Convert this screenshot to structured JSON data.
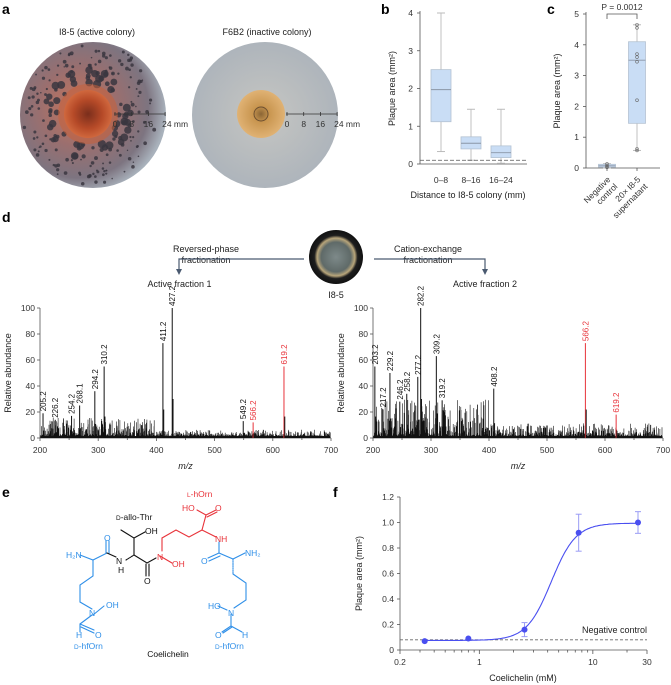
{
  "panel_letters": {
    "a": "a",
    "b": "b",
    "c": "c",
    "d": "d",
    "e": "e",
    "f": "f"
  },
  "panel_a": {
    "title_active": "I8-5 (active colony)",
    "title_inactive": "F6B2 (inactive colony)",
    "scale_labels": [
      "0",
      "8",
      "16",
      "24 mm"
    ],
    "colors": {
      "active_colony": "#c0502a",
      "inactive_colony": "#d9a45a",
      "plate": "#b9bec4"
    }
  },
  "panel_d_header": {
    "left_method_line1": "Reversed-phase",
    "left_method_line2": "fractionation",
    "right_method_line1": "Cation-exchange",
    "right_method_line2": "fractionation",
    "source_label": "I8-5"
  },
  "panel_e": {
    "compound_name": "Coelichelin",
    "thr": {
      "prefix": "D",
      "name": "-allo-Thr"
    },
    "horn": {
      "prefix": "L",
      "name": "-hOrn"
    },
    "hforn_left": {
      "prefix": "D",
      "name": "-hfOrn"
    },
    "hforn_right": {
      "prefix": "D",
      "name": "-hfOrn"
    },
    "atoms": {
      "h2n": "H₂N",
      "nh2": "NH₂",
      "o": "O",
      "oh": "OH",
      "ho": "HO",
      "nh": "NH",
      "n": "N",
      "h": "H"
    },
    "colors": {
      "hforn": "#2f8fe8",
      "horn": "#e8333a",
      "thr": "#111111"
    }
  },
  "chart_data": [
    {
      "id": "b",
      "type": "box",
      "categories": [
        "0–8",
        "8–16",
        "16–24"
      ],
      "boxes": [
        {
          "min": 0.33,
          "q1": 1.12,
          "median": 1.97,
          "q3": 2.5,
          "max": 4.0
        },
        {
          "min": 0.1,
          "q1": 0.4,
          "median": 0.55,
          "q3": 0.72,
          "max": 1.45
        },
        {
          "min": 0.02,
          "q1": 0.17,
          "median": 0.3,
          "q3": 0.48,
          "max": 1.45
        }
      ],
      "reference_line": 0.1,
      "xlabel": "Distance to I8-5 colony (mm)",
      "ylabel": "Plaque area (mm²)",
      "ylim": [
        0,
        4
      ],
      "yticks": [
        "0",
        "1",
        "2",
        "3",
        "4"
      ],
      "colors": {
        "box": "#c9ddf5",
        "edge": "#9aa9bb"
      }
    },
    {
      "id": "c",
      "type": "box",
      "categories": [
        [
          "Negative",
          "control"
        ],
        [
          "20× I8-5",
          "supernatant"
        ]
      ],
      "boxes": [
        {
          "min": 0.0,
          "q1": 0.03,
          "median": 0.07,
          "q3": 0.12,
          "max": 0.14,
          "points": [
            0.02,
            0.05,
            0.08,
            0.13
          ]
        },
        {
          "min": 0.57,
          "q1": 1.45,
          "median": 3.5,
          "q3": 4.1,
          "max": 4.65,
          "points": [
            4.65,
            4.55,
            3.7,
            3.6,
            3.45,
            2.2,
            0.62,
            0.57
          ]
        }
      ],
      "annotation": "P = 0.0012",
      "ylabel": "Plaque area (mm²)",
      "ylim": [
        0,
        5
      ],
      "yticks": [
        "0",
        "1",
        "2",
        "3",
        "4",
        "5"
      ]
    },
    {
      "id": "d1",
      "type": "bar",
      "title": "Active fraction 1",
      "xlabel": "m/z",
      "ylabel": "Relative abundance",
      "xlim": [
        200,
        700
      ],
      "ylim": [
        0,
        100
      ],
      "xticks": [
        "200",
        "300",
        "400",
        "500",
        "600",
        "700"
      ],
      "yticks": [
        "0",
        "20",
        "40",
        "60",
        "80",
        "100"
      ],
      "peaks": [
        {
          "mz": 205.2,
          "abundance": 19,
          "label": "205.2",
          "highlight": false
        },
        {
          "mz": 226.2,
          "abundance": 14,
          "label": "226.2",
          "highlight": false
        },
        {
          "mz": 254.2,
          "abundance": 17,
          "label": "254.2",
          "highlight": false
        },
        {
          "mz": 268.1,
          "abundance": 25,
          "label": "268.1",
          "highlight": false
        },
        {
          "mz": 294.2,
          "abundance": 36,
          "label": "294.2",
          "highlight": false
        },
        {
          "mz": 310.2,
          "abundance": 55,
          "label": "310.2",
          "highlight": false
        },
        {
          "mz": 411.2,
          "abundance": 73,
          "label": "411.2",
          "highlight": false
        },
        {
          "mz": 427.2,
          "abundance": 100,
          "label": "427.2",
          "highlight": false
        },
        {
          "mz": 549.2,
          "abundance": 13,
          "label": "549.2",
          "highlight": false
        },
        {
          "mz": 566.2,
          "abundance": 12,
          "label": "566.2",
          "highlight": true
        },
        {
          "mz": 619.2,
          "abundance": 55,
          "label": "619.2",
          "highlight": true
        }
      ],
      "colors": {
        "peak": "#111111",
        "highlight": "#e8333a"
      }
    },
    {
      "id": "d2",
      "type": "bar",
      "title": "Active fraction 2",
      "xlabel": "m/z",
      "ylabel": "Relative abundance",
      "xlim": [
        200,
        700
      ],
      "ylim": [
        0,
        100
      ],
      "xticks": [
        "200",
        "300",
        "400",
        "500",
        "600",
        "700"
      ],
      "yticks": [
        "0",
        "20",
        "40",
        "60",
        "80",
        "100"
      ],
      "peaks": [
        {
          "mz": 203.2,
          "abundance": 55,
          "label": "203.2",
          "highlight": false
        },
        {
          "mz": 217.2,
          "abundance": 22,
          "label": "217.2",
          "highlight": false
        },
        {
          "mz": 229.2,
          "abundance": 50,
          "label": "229.2",
          "highlight": false
        },
        {
          "mz": 246.2,
          "abundance": 28,
          "label": "246.2",
          "highlight": false
        },
        {
          "mz": 258.2,
          "abundance": 34,
          "label": "258.2",
          "highlight": false
        },
        {
          "mz": 277.2,
          "abundance": 47,
          "label": "277.2",
          "highlight": false
        },
        {
          "mz": 282.2,
          "abundance": 100,
          "label": "282.2",
          "highlight": false
        },
        {
          "mz": 309.2,
          "abundance": 63,
          "label": "309.2",
          "highlight": false
        },
        {
          "mz": 319.2,
          "abundance": 29,
          "label": "319.2",
          "highlight": false
        },
        {
          "mz": 408.2,
          "abundance": 38,
          "label": "408.2",
          "highlight": false
        },
        {
          "mz": 566.2,
          "abundance": 73,
          "label": "566.2",
          "highlight": true
        },
        {
          "mz": 619.2,
          "abundance": 18,
          "label": "619.2",
          "highlight": true
        }
      ],
      "colors": {
        "peak": "#111111",
        "highlight": "#e8333a"
      }
    },
    {
      "id": "f",
      "type": "scatter",
      "xscale": "log",
      "xlim": [
        0.2,
        30
      ],
      "ylim": [
        0,
        1.2
      ],
      "xticks": [
        "0.2",
        "1",
        "10",
        "30"
      ],
      "yticks": [
        "0",
        "0.2",
        "0.4",
        "0.6",
        "0.8",
        "1.0",
        "1.2"
      ],
      "xlabel": "Coelichelin (mM)",
      "ylabel": "Plaque area (mm²)",
      "points": [
        {
          "x": 0.33,
          "y": 0.07,
          "err": 0
        },
        {
          "x": 0.8,
          "y": 0.09,
          "err": 0
        },
        {
          "x": 2.5,
          "y": 0.16,
          "err": 0.055
        },
        {
          "x": 7.5,
          "y": 0.92,
          "err": 0.145
        },
        {
          "x": 25,
          "y": 1.0,
          "err": 0.085
        }
      ],
      "fit": "sigmoidal",
      "reference_line": {
        "y": 0.08,
        "label": "Negative control"
      },
      "colors": {
        "series": "#4a4ff0",
        "errorbar": "#9a9cf5"
      }
    }
  ]
}
